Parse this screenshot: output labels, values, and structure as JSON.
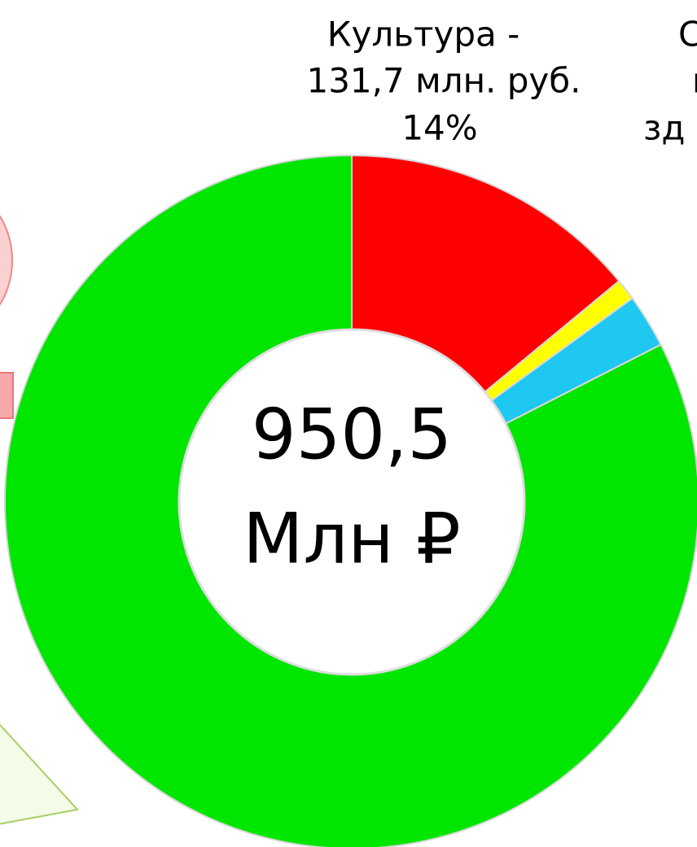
{
  "chart_data": {
    "type": "donut",
    "values": [
      14,
      1,
      2.5,
      82.5
    ],
    "colors": [
      "#ff0000",
      "#ffff00",
      "#1ec8f0",
      "#00e600"
    ],
    "data_labels": [
      [
        "Культура -",
        "131,7 млн. руб.",
        "14%"
      ],
      [
        "С",
        "н",
        "зд"
      ],
      null,
      null
    ],
    "center_text": [
      "950,5",
      "Млн ₽"
    ]
  }
}
